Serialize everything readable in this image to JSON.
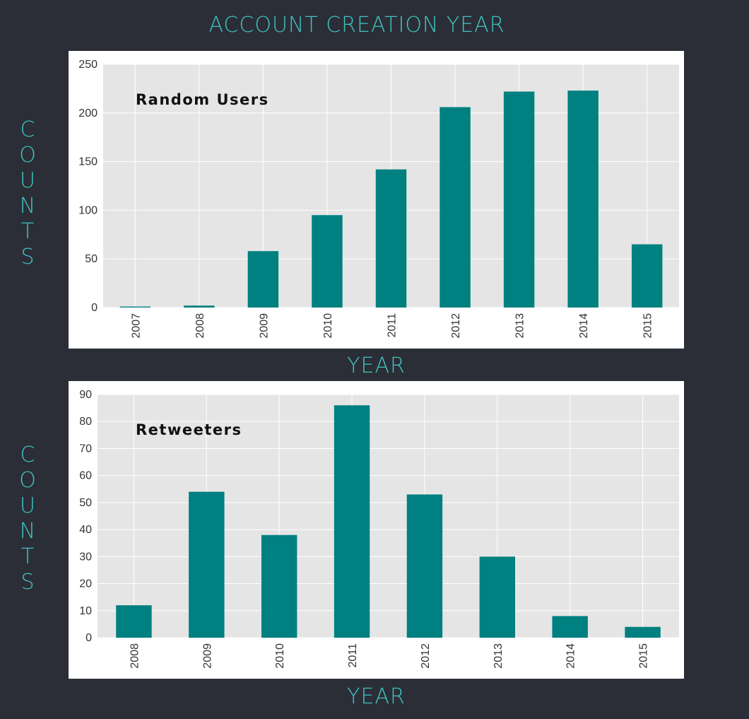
{
  "page_title": "ACCOUNT CREATION YEAR",
  "chart_data": [
    {
      "type": "bar",
      "title": "",
      "series_label": "Random Users",
      "ylabel": "COUNTS",
      "xlabel": "YEAR",
      "categories": [
        "2007",
        "2008",
        "2009",
        "2010",
        "2011",
        "2012",
        "2013",
        "2014",
        "2015"
      ],
      "values": [
        1,
        2,
        58,
        95,
        142,
        206,
        222,
        223,
        65
      ],
      "ylim": [
        0,
        250
      ],
      "yticks": [
        0,
        50,
        100,
        150,
        200,
        250
      ],
      "grid": true,
      "bar_color": "#008080",
      "plot_background": "#e5e5e5"
    },
    {
      "type": "bar",
      "title": "",
      "series_label": "Retweeters",
      "ylabel": "COUNTS",
      "xlabel": "YEAR",
      "categories": [
        "2008",
        "2009",
        "2010",
        "2011",
        "2012",
        "2013",
        "2014",
        "2015"
      ],
      "values": [
        12,
        54,
        38,
        86,
        53,
        30,
        8,
        4
      ],
      "ylim": [
        0,
        90
      ],
      "yticks": [
        0,
        10,
        20,
        30,
        40,
        50,
        60,
        70,
        80,
        90
      ],
      "grid": true,
      "bar_color": "#008080",
      "plot_background": "#e5e5e5"
    }
  ]
}
